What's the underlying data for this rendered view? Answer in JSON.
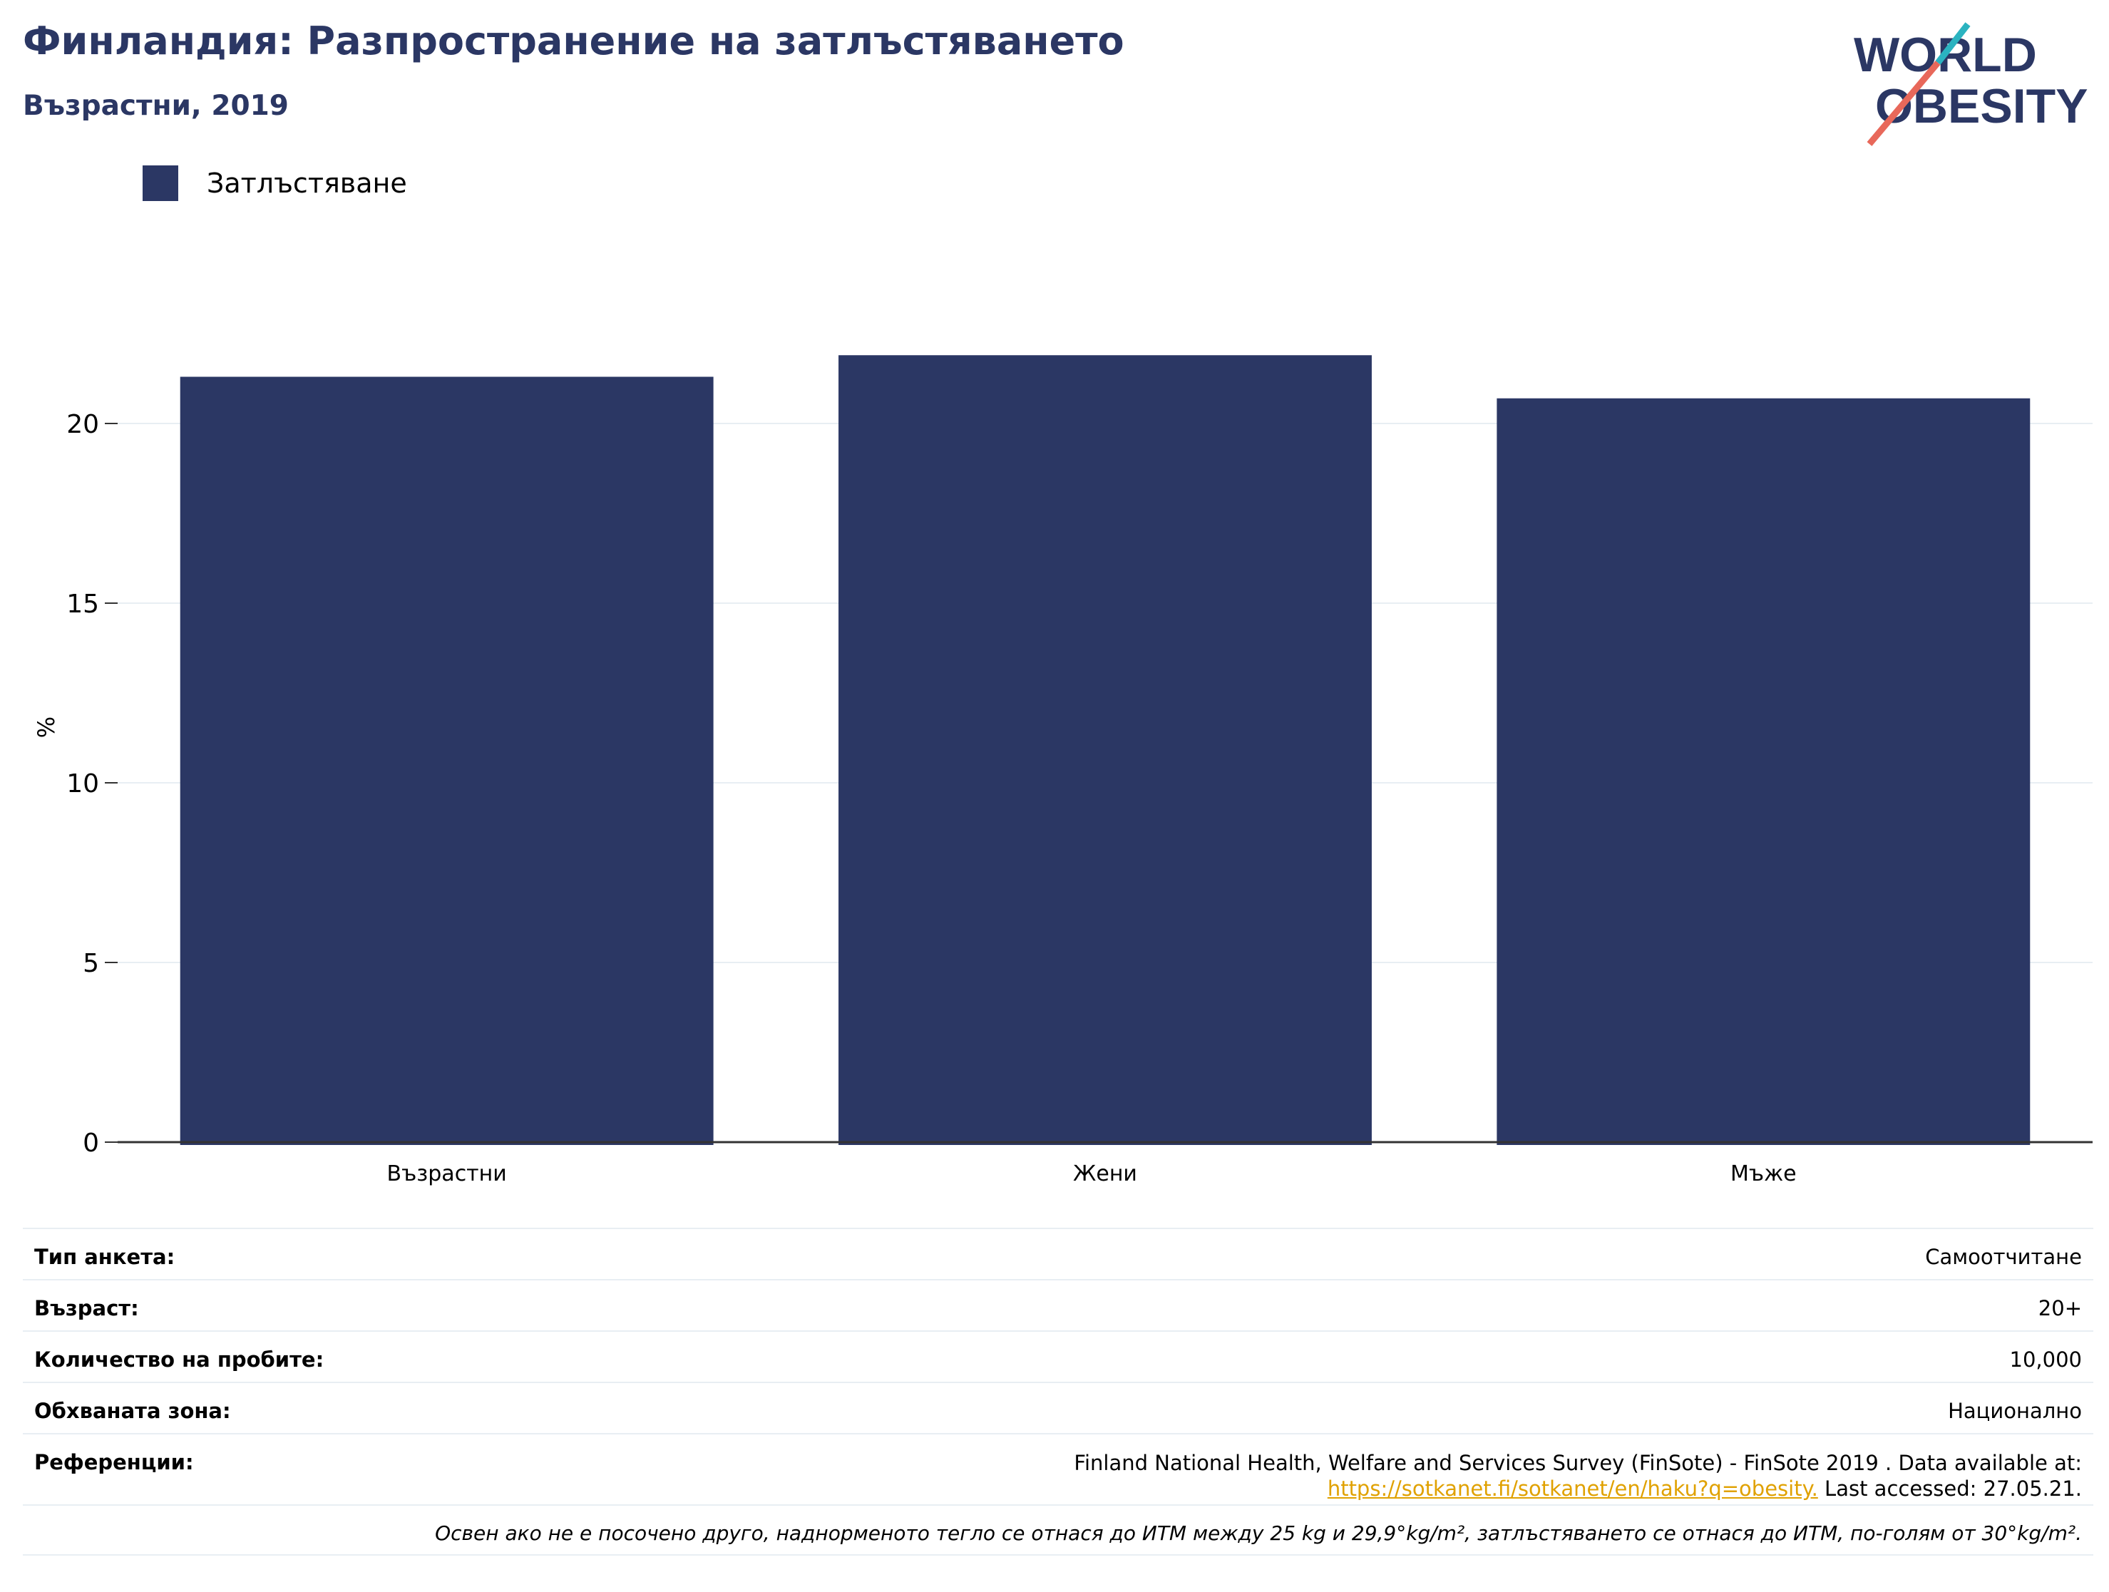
{
  "header": {
    "title": "Финландия: Разпространение на затлъстяването",
    "subtitle": "Възрастни, 2019"
  },
  "logo": {
    "line1": "WORLD",
    "line2": "OBESITY"
  },
  "legend": {
    "label": "Затлъстяване"
  },
  "colors": {
    "bar": "#2b3764",
    "title": "#2b3764",
    "link": "#e0a100",
    "slash_teal": "#2bb3c0",
    "slash_coral": "#e8685a"
  },
  "chart_data": {
    "type": "bar",
    "categories": [
      "Възрастни",
      "Жени",
      "Мъже"
    ],
    "series": [
      {
        "name": "Затлъстяване",
        "values": [
          21.3,
          21.9,
          20.7
        ]
      }
    ],
    "ylabel": "%",
    "yticks": [
      0,
      5,
      10,
      15,
      20
    ],
    "ylim": [
      0,
      23
    ],
    "grid": true,
    "legend_position": "top-left"
  },
  "info": {
    "survey_type_label": "Тип анкета:",
    "survey_type_value": "Самоотчитане",
    "age_label": "Възраст:",
    "age_value": "20+",
    "sample_label": "Количество на пробите:",
    "sample_value": "10,000",
    "area_label": "Обхваната зона:",
    "area_value": "Национално",
    "ref_label": "Референции:",
    "ref_line1": "Finland National Health, Welfare and Services Survey (FinSote) - FinSote 2019 . Data available at:",
    "ref_link": "https://sotkanet.fi/sotkanet/en/haku?q=obesity.",
    "ref_tail": " Last accessed: 27.05.21.",
    "note": "Освен ако не е посочено друго, наднорменото тегло се отнася до ИТМ между 25 kg и 29,9°kg/m², затлъстяването се отнася до ИТМ, по-голям от 30°kg/m²."
  }
}
